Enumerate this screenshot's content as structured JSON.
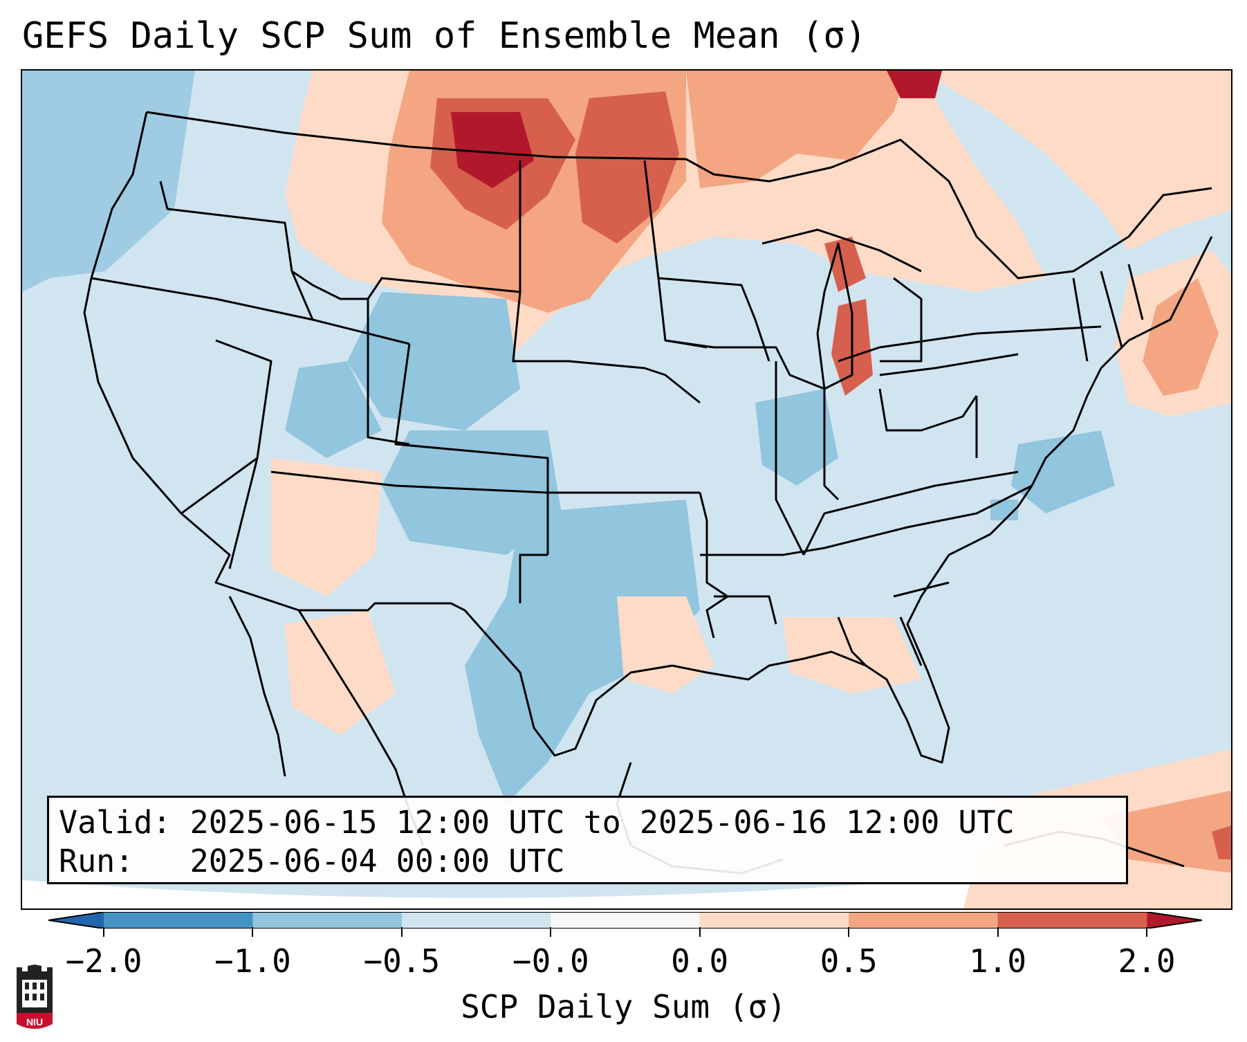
{
  "title": "GEFS Daily SCP Sum of Ensemble Mean (σ)",
  "info_box": {
    "valid_line": "Valid: 2025-06-15 12:00 UTC to 2025-06-16 12:00 UTC",
    "run_line": "Run:   2025-06-04 00:00 UTC"
  },
  "colorbar": {
    "label": "SCP Daily Sum (σ)",
    "ticks": [
      "−2.0",
      "−1.0",
      "−0.5",
      "−0.0",
      "0.0",
      "0.5",
      "1.0",
      "2.0"
    ],
    "bins": [
      {
        "from": "-2.0",
        "to": "-1.0",
        "color": "#4393c3"
      },
      {
        "from": "-1.0",
        "to": "-0.5",
        "color": "#92c5de"
      },
      {
        "from": "-0.5",
        "to": "-0.0",
        "color": "#d1e5f0"
      },
      {
        "from": "-0.0",
        "to": "0.0",
        "color": "#f7f7f7"
      },
      {
        "from": "0.0",
        "to": "0.5",
        "color": "#fddbc7"
      },
      {
        "from": "0.5",
        "to": "1.0",
        "color": "#f4a582"
      },
      {
        "from": "1.0",
        "to": "2.0",
        "color": "#d6604d"
      }
    ],
    "under_color": "#2166ac",
    "over_color": "#b2182b"
  },
  "map_colors": {
    "ocean": "#d1e5f0",
    "land_default": "#d1e5f0",
    "coast": "#000000"
  },
  "logo": {
    "text": "NIU",
    "icon": "niu-castle-logo-icon",
    "color": "#c8102e"
  }
}
